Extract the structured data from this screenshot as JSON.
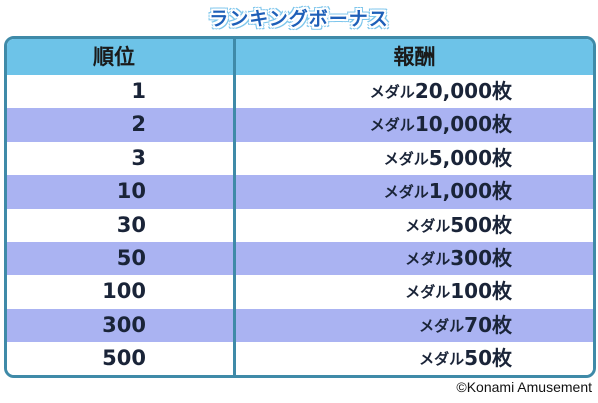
{
  "title": "ランキングボーナス",
  "table": {
    "headers": {
      "rank": "順位",
      "reward": "報酬"
    },
    "rows": [
      {
        "rank": "1",
        "prefix": "メダル",
        "amount": "20,000枚"
      },
      {
        "rank": "2",
        "prefix": "メダル",
        "amount": "10,000枚"
      },
      {
        "rank": "3",
        "prefix": "メダル",
        "amount": "5,000枚"
      },
      {
        "rank": "10",
        "prefix": "メダル",
        "amount": "1,000枚"
      },
      {
        "rank": "30",
        "prefix": "メダル",
        "amount": "500枚"
      },
      {
        "rank": "50",
        "prefix": "メダル",
        "amount": "300枚"
      },
      {
        "rank": "100",
        "prefix": "メダル",
        "amount": "100枚"
      },
      {
        "rank": "300",
        "prefix": "メダル",
        "amount": "70枚"
      },
      {
        "rank": "500",
        "prefix": "メダル",
        "amount": "50枚"
      }
    ]
  },
  "copyright": "©Konami Amusement",
  "colors": {
    "header_bg": "#6dc3e8",
    "stripe": "#aab3f2",
    "border": "#3f8aa8",
    "title": "#1e5fb8"
  }
}
